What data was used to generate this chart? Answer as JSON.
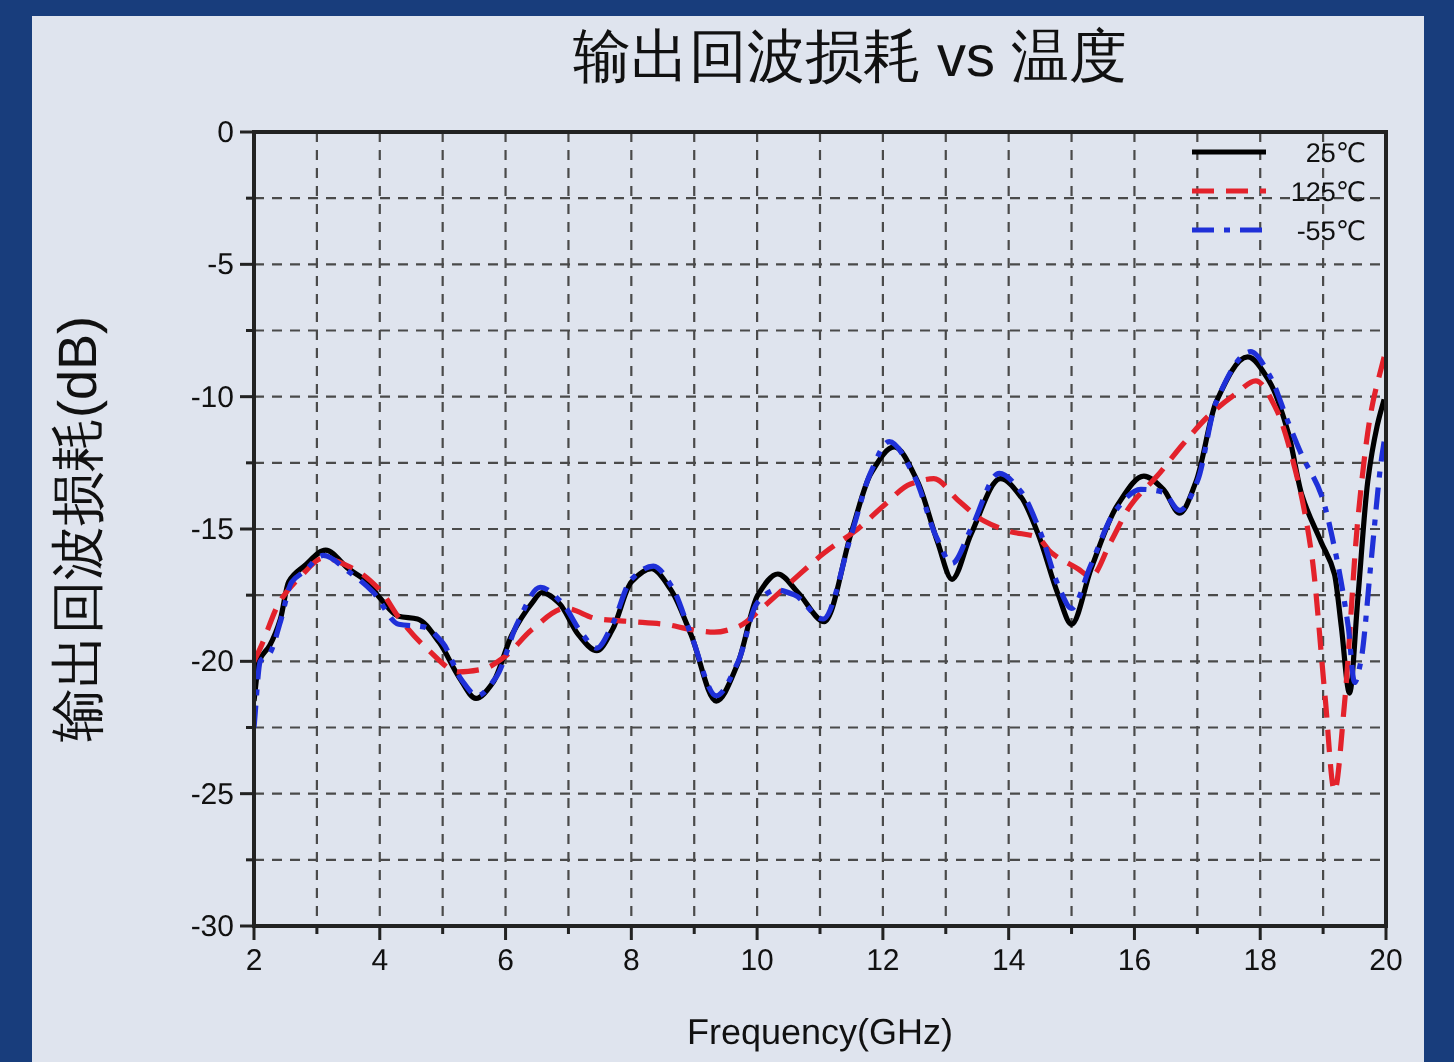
{
  "chart_data": {
    "type": "line",
    "title": "输出回波损耗 vs 温度",
    "xlabel": "Frequency(GHz)",
    "ylabel": "输出回波损耗(dB)",
    "xlim": [
      2,
      20
    ],
    "ylim": [
      -30,
      0
    ],
    "xticks": [
      2,
      {
        "value": 3,
        "label": null
      },
      4,
      {
        "value": 5,
        "label": null
      },
      6,
      {
        "value": 7,
        "label": null
      },
      8,
      {
        "value": 9,
        "label": null
      },
      10,
      {
        "value": 11,
        "label": null
      },
      12,
      {
        "value": 13,
        "label": null
      },
      14,
      {
        "value": 15,
        "label": null
      },
      16,
      {
        "value": 17,
        "label": null
      },
      18,
      {
        "value": 19,
        "label": null
      },
      20
    ],
    "yticks": [
      -30,
      {
        "value": -27.5,
        "label": null
      },
      -25,
      {
        "value": -22.5,
        "label": null
      },
      -20,
      {
        "value": -17.5,
        "label": null
      },
      -15,
      {
        "value": -12.5,
        "label": null
      },
      -10,
      {
        "value": -7.5,
        "label": null
      },
      -5,
      {
        "value": -2.5,
        "label": null
      },
      0
    ],
    "grid": true,
    "legend": "top right",
    "series": [
      {
        "name": "25℃",
        "color": "#000000",
        "line_style": "solid",
        "x": [
          2.0,
          2.08,
          2.25,
          2.42,
          2.55,
          2.8,
          3.14,
          3.5,
          3.8,
          4.0,
          4.3,
          4.6,
          4.95,
          5.26,
          5.53,
          5.8,
          6.1,
          6.42,
          6.58,
          6.85,
          7.16,
          7.45,
          7.7,
          8.0,
          8.32,
          8.63,
          8.95,
          9.35,
          9.69,
          10.01,
          10.33,
          10.65,
          11.07,
          11.49,
          11.81,
          12.18,
          12.55,
          12.87,
          13.1,
          13.4,
          13.87,
          14.2,
          14.47,
          14.79,
          15.0,
          15.31,
          15.73,
          16.15,
          16.46,
          16.72,
          16.98,
          17.3,
          17.8,
          18.14,
          18.45,
          18.66,
          18.97,
          19.18,
          19.29,
          19.42,
          19.55,
          19.71,
          19.86,
          19.97
        ],
        "values": [
          -21.5,
          -20.0,
          -19.4,
          -18.4,
          -17.0,
          -16.4,
          -15.8,
          -16.5,
          -17.0,
          -17.6,
          -18.3,
          -18.4,
          -19.3,
          -20.6,
          -21.4,
          -20.8,
          -19.0,
          -17.8,
          -17.4,
          -17.8,
          -19.0,
          -19.6,
          -18.8,
          -17.0,
          -16.5,
          -17.3,
          -19.0,
          -21.5,
          -20.1,
          -17.5,
          -16.7,
          -17.4,
          -18.5,
          -15.2,
          -12.9,
          -11.9,
          -13.2,
          -15.5,
          -16.9,
          -15.2,
          -13.1,
          -13.8,
          -15.2,
          -17.5,
          -18.6,
          -16.5,
          -14.1,
          -13.0,
          -13.5,
          -14.4,
          -13.2,
          -10.2,
          -8.5,
          -9.4,
          -11.4,
          -13.7,
          -15.5,
          -16.7,
          -18.7,
          -21.2,
          -17.7,
          -13.2,
          -11.1,
          -10.1
        ]
      },
      {
        "name": "125℃",
        "color": "#e3222b",
        "line_style": "dashed",
        "x": [
          2.0,
          2.1,
          2.42,
          2.74,
          3.1,
          3.58,
          4.0,
          4.32,
          4.74,
          5.26,
          5.63,
          6.0,
          6.42,
          6.95,
          7.47,
          8.0,
          8.53,
          8.95,
          9.32,
          9.69,
          10.12,
          10.54,
          11.07,
          11.6,
          12.02,
          12.44,
          12.81,
          13.19,
          13.61,
          14.03,
          14.45,
          14.68,
          15.1,
          15.31,
          15.62,
          15.94,
          16.36,
          16.77,
          17.19,
          17.61,
          17.93,
          18.24,
          18.55,
          18.82,
          19.03,
          19.18,
          19.34,
          19.55,
          19.76,
          19.97
        ],
        "values": [
          -20.0,
          -19.5,
          -17.7,
          -16.8,
          -16.1,
          -16.5,
          -17.3,
          -18.4,
          -19.5,
          -20.4,
          -20.3,
          -19.8,
          -18.8,
          -18.0,
          -18.4,
          -18.5,
          -18.6,
          -18.8,
          -18.9,
          -18.7,
          -17.9,
          -17.0,
          -15.9,
          -15.0,
          -14.1,
          -13.3,
          -13.1,
          -13.9,
          -14.7,
          -15.1,
          -15.3,
          -15.9,
          -16.5,
          -16.8,
          -15.5,
          -14.1,
          -13.0,
          -11.8,
          -10.7,
          -9.9,
          -9.4,
          -10.4,
          -12.7,
          -16.0,
          -21.3,
          -24.9,
          -21.6,
          -14.7,
          -10.6,
          -8.5
        ]
      },
      {
        "name": "-55℃",
        "color": "#1f30d8",
        "line_style": "dashdot",
        "x": [
          2.0,
          2.1,
          2.25,
          2.42,
          2.6,
          2.8,
          3.1,
          3.5,
          3.9,
          4.3,
          4.7,
          5.0,
          5.3,
          5.55,
          5.85,
          6.2,
          6.55,
          6.9,
          7.2,
          7.45,
          7.7,
          8.0,
          8.35,
          8.65,
          8.95,
          9.35,
          9.7,
          10.0,
          10.3,
          10.6,
          11.05,
          11.5,
          11.8,
          12.1,
          12.5,
          12.85,
          13.1,
          13.4,
          13.85,
          14.2,
          14.5,
          14.8,
          15.0,
          15.3,
          15.7,
          16.1,
          16.45,
          16.72,
          17.0,
          17.3,
          17.85,
          18.15,
          18.45,
          18.66,
          18.97,
          19.18,
          19.4,
          19.5,
          19.6,
          19.76,
          19.92,
          19.97
        ],
        "values": [
          -22.5,
          -20.0,
          -19.7,
          -18.5,
          -17.0,
          -16.6,
          -16.0,
          -16.6,
          -17.4,
          -18.6,
          -18.7,
          -19.3,
          -20.7,
          -21.3,
          -20.6,
          -18.5,
          -17.2,
          -17.8,
          -18.9,
          -19.5,
          -18.6,
          -16.9,
          -16.4,
          -17.2,
          -19.0,
          -21.3,
          -20.0,
          -17.8,
          -17.3,
          -17.5,
          -18.4,
          -15.2,
          -12.9,
          -11.7,
          -13.0,
          -15.3,
          -16.3,
          -15.0,
          -12.9,
          -13.6,
          -15.1,
          -17.2,
          -18.0,
          -16.4,
          -14.3,
          -13.5,
          -13.6,
          -14.3,
          -13.2,
          -10.2,
          -8.3,
          -9.2,
          -11.0,
          -12.2,
          -13.7,
          -15.7,
          -18.7,
          -20.8,
          -20.0,
          -16.3,
          -12.5,
          -11.7
        ]
      }
    ]
  }
}
